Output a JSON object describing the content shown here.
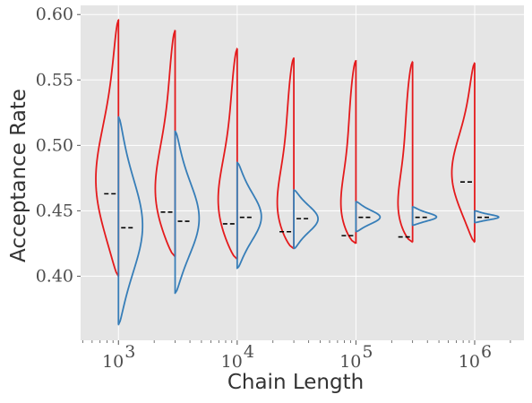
{
  "chart_data": {
    "type": "violin",
    "xlabel": "Chain Length",
    "ylabel": "Acceptance Rate",
    "x_scale": "log",
    "xlim": [
      480,
      2600000
    ],
    "ylim": [
      0.351,
      0.607
    ],
    "grid": true,
    "xticks": [
      {
        "value": 1000,
        "mantissa": "10",
        "exponent": "3"
      },
      {
        "value": 10000,
        "mantissa": "10",
        "exponent": "4"
      },
      {
        "value": 100000,
        "mantissa": "10",
        "exponent": "5"
      },
      {
        "value": 1000000,
        "mantissa": "10",
        "exponent": "6"
      }
    ],
    "yticks": [
      {
        "value": 0.4,
        "label": "0.40"
      },
      {
        "value": 0.45,
        "label": "0.45"
      },
      {
        "value": 0.5,
        "label": "0.50"
      },
      {
        "value": 0.55,
        "label": "0.55"
      },
      {
        "value": 0.6,
        "label": "0.60"
      }
    ],
    "series": [
      {
        "color": "#e41a1c",
        "side": "left",
        "violins": [
          {
            "chain_length": 1000,
            "min": 0.4,
            "max": 0.596,
            "median": 0.463
          },
          {
            "chain_length": 3000,
            "min": 0.415,
            "max": 0.588,
            "median": 0.449
          },
          {
            "chain_length": 10000,
            "min": 0.413,
            "max": 0.574,
            "median": 0.44
          },
          {
            "chain_length": 30000,
            "min": 0.421,
            "max": 0.567,
            "median": 0.434
          },
          {
            "chain_length": 100000,
            "min": 0.425,
            "max": 0.565,
            "median": 0.431
          },
          {
            "chain_length": 300000,
            "min": 0.426,
            "max": 0.564,
            "median": 0.43
          },
          {
            "chain_length": 1000000,
            "min": 0.426,
            "max": 0.563,
            "median": 0.472
          }
        ]
      },
      {
        "color": "#377eb8",
        "side": "right",
        "violins": [
          {
            "chain_length": 1000,
            "min": 0.363,
            "max": 0.522,
            "median": 0.437
          },
          {
            "chain_length": 3000,
            "min": 0.387,
            "max": 0.511,
            "median": 0.442
          },
          {
            "chain_length": 10000,
            "min": 0.406,
            "max": 0.487,
            "median": 0.445
          },
          {
            "chain_length": 30000,
            "min": 0.421,
            "max": 0.466,
            "median": 0.444
          },
          {
            "chain_length": 100000,
            "min": 0.434,
            "max": 0.457,
            "median": 0.445
          },
          {
            "chain_length": 300000,
            "min": 0.439,
            "max": 0.453,
            "median": 0.445
          },
          {
            "chain_length": 1000000,
            "min": 0.441,
            "max": 0.45,
            "median": 0.445
          }
        ]
      }
    ]
  }
}
